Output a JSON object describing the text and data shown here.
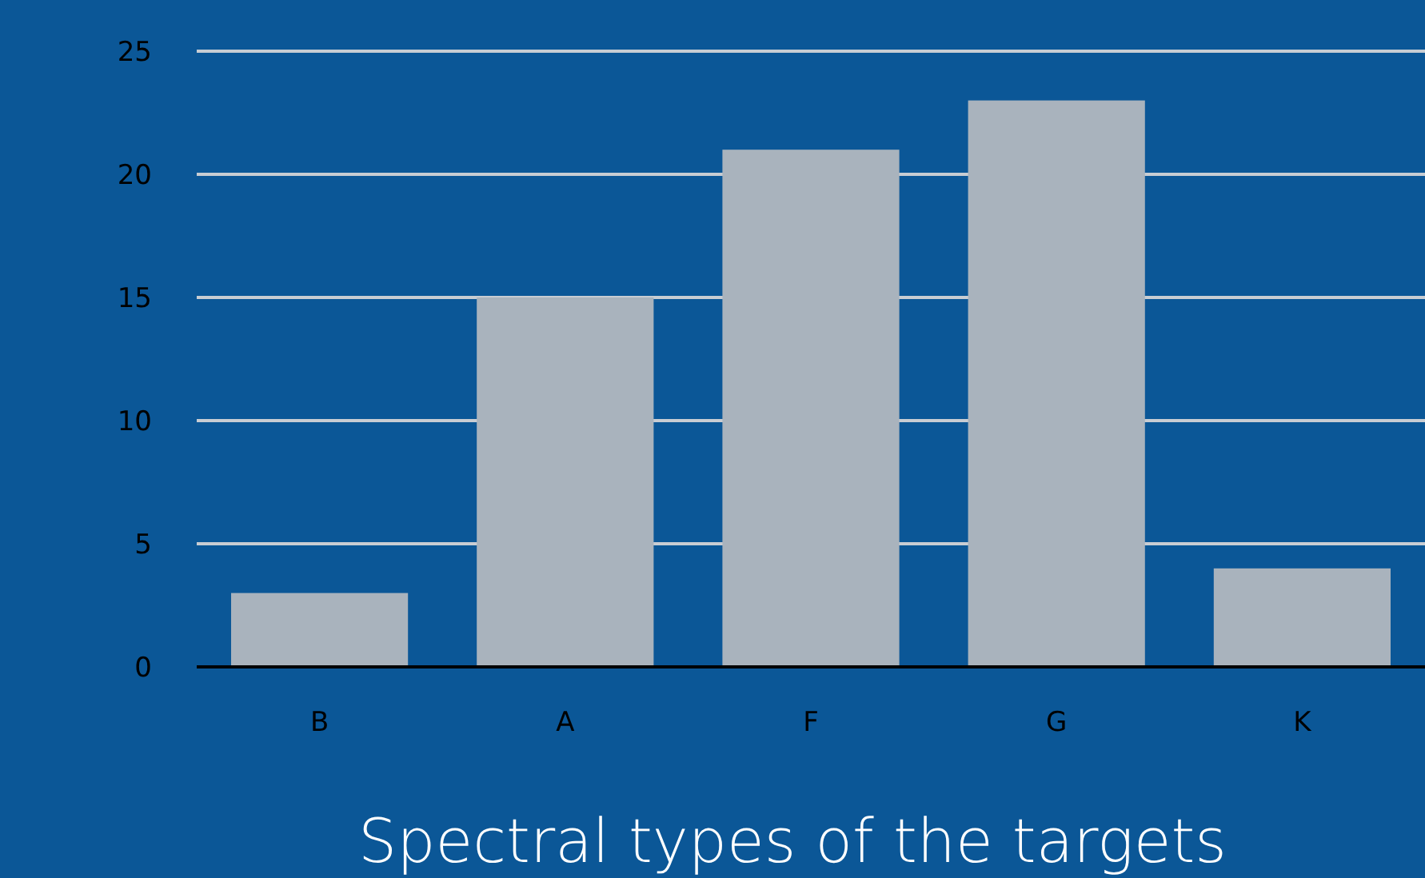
{
  "chart_data": {
    "type": "bar",
    "title": "Spectral types of the targets",
    "categories": [
      "B",
      "A",
      "F",
      "G",
      "K"
    ],
    "values": [
      3,
      15,
      21,
      23,
      4
    ],
    "color": "#a9b3bd",
    "ylim": [
      0,
      25
    ],
    "yticks": [
      0,
      5,
      10,
      15,
      20,
      25
    ],
    "grid": "y"
  }
}
